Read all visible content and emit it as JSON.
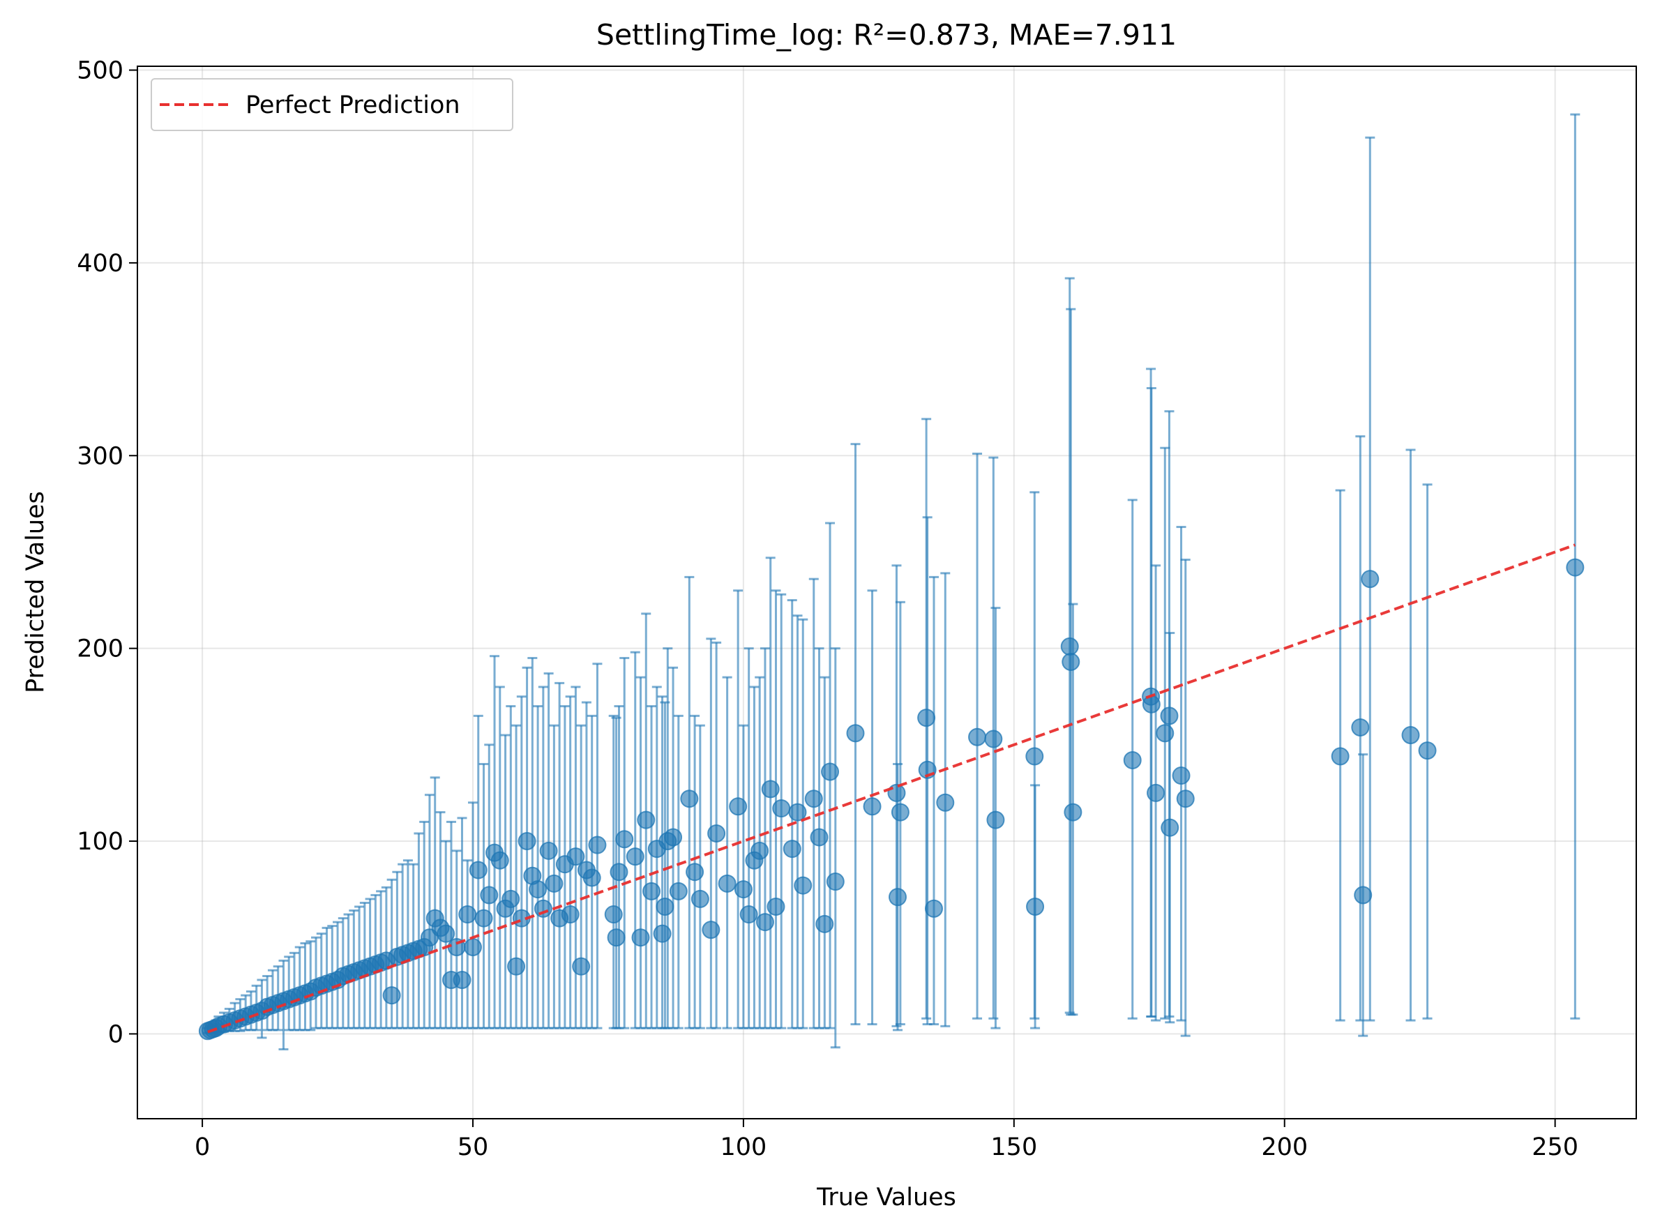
{
  "chart_data": {
    "type": "scatter",
    "title": "SettlingTime_log: R²=0.873, MAE=7.911",
    "xlabel": "True Values",
    "ylabel": "Predicted Values",
    "xlim": [
      -12,
      265
    ],
    "ylim": [
      -44,
      502
    ],
    "xticks": [
      0,
      50,
      100,
      150,
      200,
      250
    ],
    "yticks": [
      0,
      100,
      200,
      300,
      400,
      500
    ],
    "grid": true,
    "legend": {
      "placement": "top-left",
      "entries": [
        {
          "label": "Perfect Prediction",
          "style": "dashed",
          "color": "#e8302f"
        }
      ]
    },
    "reference_line": {
      "name": "Perfect Prediction",
      "x": [
        1,
        253.7
      ],
      "y": [
        1,
        253.7
      ],
      "color": "#e8302f"
    },
    "point_color": "#1f77b4",
    "series": [
      {
        "kind": "error_points",
        "points": [
          {
            "x": 1,
            "y": 1.5,
            "lo": 0.5,
            "hi": 3
          },
          {
            "x": 1.5,
            "y": 2,
            "lo": 0.5,
            "hi": 4
          },
          {
            "x": 2,
            "y": 2.5,
            "lo": 0.8,
            "hi": 5
          },
          {
            "x": 2.5,
            "y": 3,
            "lo": 1,
            "hi": 7
          },
          {
            "x": 3,
            "y": 4,
            "lo": 1,
            "hi": 9
          },
          {
            "x": 4,
            "y": 5,
            "lo": 1.2,
            "hi": 11
          },
          {
            "x": 5,
            "y": 6,
            "lo": 1.5,
            "hi": 13
          },
          {
            "x": 6,
            "y": 7,
            "lo": 1.5,
            "hi": 16
          },
          {
            "x": 7,
            "y": 8,
            "lo": 1.5,
            "hi": 18
          },
          {
            "x": 8,
            "y": 9,
            "lo": 2,
            "hi": 20
          },
          {
            "x": 9,
            "y": 10,
            "lo": 2,
            "hi": 22
          },
          {
            "x": 10,
            "y": 11,
            "lo": 2,
            "hi": 25
          },
          {
            "x": 11,
            "y": 12,
            "lo": -2,
            "hi": 28
          },
          {
            "x": 12,
            "y": 14,
            "lo": 2,
            "hi": 30
          },
          {
            "x": 13,
            "y": 15,
            "lo": 2,
            "hi": 33
          },
          {
            "x": 14,
            "y": 16,
            "lo": 2,
            "hi": 35
          },
          {
            "x": 15,
            "y": 17,
            "lo": -8,
            "hi": 38
          },
          {
            "x": 16,
            "y": 18,
            "lo": 2,
            "hi": 40
          },
          {
            "x": 17,
            "y": 19,
            "lo": 2,
            "hi": 42
          },
          {
            "x": 18,
            "y": 20,
            "lo": 2,
            "hi": 45
          },
          {
            "x": 19,
            "y": 21,
            "lo": 2,
            "hi": 47
          },
          {
            "x": 20,
            "y": 22,
            "lo": 2,
            "hi": 48
          },
          {
            "x": 21,
            "y": 24,
            "lo": 3,
            "hi": 50
          },
          {
            "x": 22,
            "y": 25,
            "lo": 3,
            "hi": 52
          },
          {
            "x": 23,
            "y": 26,
            "lo": 3,
            "hi": 55
          },
          {
            "x": 24,
            "y": 27,
            "lo": 3,
            "hi": 56
          },
          {
            "x": 25,
            "y": 28,
            "lo": 3,
            "hi": 58
          },
          {
            "x": 26,
            "y": 30,
            "lo": 3,
            "hi": 60
          },
          {
            "x": 27,
            "y": 31,
            "lo": 3,
            "hi": 62
          },
          {
            "x": 28,
            "y": 32,
            "lo": 3,
            "hi": 64
          },
          {
            "x": 29,
            "y": 33,
            "lo": 3,
            "hi": 66
          },
          {
            "x": 30,
            "y": 34,
            "lo": 3,
            "hi": 68
          },
          {
            "x": 31,
            "y": 35,
            "lo": 3,
            "hi": 70
          },
          {
            "x": 32,
            "y": 36,
            "lo": 3,
            "hi": 72
          },
          {
            "x": 33,
            "y": 37,
            "lo": 3,
            "hi": 74
          },
          {
            "x": 34,
            "y": 38,
            "lo": 3,
            "hi": 76
          },
          {
            "x": 35,
            "y": 20,
            "lo": 3,
            "hi": 80
          },
          {
            "x": 36,
            "y": 40,
            "lo": 3,
            "hi": 84
          },
          {
            "x": 37,
            "y": 41,
            "lo": 3,
            "hi": 88
          },
          {
            "x": 38,
            "y": 42,
            "lo": 3,
            "hi": 90
          },
          {
            "x": 39,
            "y": 43,
            "lo": 3,
            "hi": 88
          },
          {
            "x": 40,
            "y": 44,
            "lo": 3,
            "hi": 104
          },
          {
            "x": 41,
            "y": 45,
            "lo": 3,
            "hi": 110
          },
          {
            "x": 42,
            "y": 50,
            "lo": 3,
            "hi": 124
          },
          {
            "x": 43,
            "y": 60,
            "lo": 3,
            "hi": 133
          },
          {
            "x": 44,
            "y": 55,
            "lo": 3,
            "hi": 115
          },
          {
            "x": 45,
            "y": 52,
            "lo": 3,
            "hi": 100
          },
          {
            "x": 46,
            "y": 28,
            "lo": 3,
            "hi": 110
          },
          {
            "x": 47,
            "y": 45,
            "lo": 3,
            "hi": 95
          },
          {
            "x": 48,
            "y": 28,
            "lo": 3,
            "hi": 112
          },
          {
            "x": 49,
            "y": 62,
            "lo": 3,
            "hi": 90
          },
          {
            "x": 50,
            "y": 45,
            "lo": 3,
            "hi": 120
          },
          {
            "x": 51,
            "y": 85,
            "lo": 3,
            "hi": 165
          },
          {
            "x": 52,
            "y": 60,
            "lo": 3,
            "hi": 140
          },
          {
            "x": 53,
            "y": 72,
            "lo": 3,
            "hi": 150
          },
          {
            "x": 54,
            "y": 94,
            "lo": 3,
            "hi": 196
          },
          {
            "x": 55,
            "y": 90,
            "lo": 3,
            "hi": 180
          },
          {
            "x": 56,
            "y": 65,
            "lo": 3,
            "hi": 155
          },
          {
            "x": 57,
            "y": 70,
            "lo": 3,
            "hi": 170
          },
          {
            "x": 58,
            "y": 35,
            "lo": 3,
            "hi": 160
          },
          {
            "x": 59,
            "y": 60,
            "lo": 3,
            "hi": 175
          },
          {
            "x": 60,
            "y": 100,
            "lo": 3,
            "hi": 190
          },
          {
            "x": 61,
            "y": 82,
            "lo": 3,
            "hi": 195
          },
          {
            "x": 62,
            "y": 75,
            "lo": 3,
            "hi": 170
          },
          {
            "x": 63,
            "y": 65,
            "lo": 3,
            "hi": 180
          },
          {
            "x": 64,
            "y": 95,
            "lo": 3,
            "hi": 187
          },
          {
            "x": 65,
            "y": 78,
            "lo": 3,
            "hi": 160
          },
          {
            "x": 66,
            "y": 60,
            "lo": 3,
            "hi": 182
          },
          {
            "x": 67,
            "y": 88,
            "lo": 3,
            "hi": 170
          },
          {
            "x": 68,
            "y": 62,
            "lo": 3,
            "hi": 175
          },
          {
            "x": 69,
            "y": 92,
            "lo": 3,
            "hi": 180
          },
          {
            "x": 70,
            "y": 35,
            "lo": 3,
            "hi": 160
          },
          {
            "x": 71,
            "y": 85,
            "lo": 3,
            "hi": 172
          },
          {
            "x": 72,
            "y": 81,
            "lo": 3,
            "hi": 165
          },
          {
            "x": 73,
            "y": 98,
            "lo": 3,
            "hi": 192
          },
          {
            "x": 76,
            "y": 62,
            "lo": 3,
            "hi": 165
          },
          {
            "x": 76.5,
            "y": 50,
            "lo": 3,
            "hi": 164
          },
          {
            "x": 77,
            "y": 84,
            "lo": 3,
            "hi": 170
          },
          {
            "x": 78,
            "y": 101,
            "lo": 3,
            "hi": 195
          },
          {
            "x": 80,
            "y": 92,
            "lo": 3,
            "hi": 198
          },
          {
            "x": 81,
            "y": 50,
            "lo": 3,
            "hi": 185
          },
          {
            "x": 82,
            "y": 111,
            "lo": 3,
            "hi": 218
          },
          {
            "x": 83,
            "y": 74,
            "lo": 3,
            "hi": 170
          },
          {
            "x": 84,
            "y": 96,
            "lo": 3,
            "hi": 180
          },
          {
            "x": 85,
            "y": 52,
            "lo": 3,
            "hi": 175
          },
          {
            "x": 85.5,
            "y": 66,
            "lo": 3,
            "hi": 172
          },
          {
            "x": 86,
            "y": 100,
            "lo": 3,
            "hi": 200
          },
          {
            "x": 87,
            "y": 102,
            "lo": 3,
            "hi": 190
          },
          {
            "x": 88,
            "y": 74,
            "lo": 3,
            "hi": 165
          },
          {
            "x": 90,
            "y": 122,
            "lo": 3,
            "hi": 237
          },
          {
            "x": 91,
            "y": 84,
            "lo": 3,
            "hi": 165
          },
          {
            "x": 92,
            "y": 70,
            "lo": 3,
            "hi": 160
          },
          {
            "x": 94,
            "y": 54,
            "lo": 3,
            "hi": 205
          },
          {
            "x": 95,
            "y": 104,
            "lo": 3,
            "hi": 203
          },
          {
            "x": 97,
            "y": 78,
            "lo": 3,
            "hi": 185
          },
          {
            "x": 99,
            "y": 118,
            "lo": 3,
            "hi": 230
          },
          {
            "x": 100,
            "y": 75,
            "lo": 3,
            "hi": 160
          },
          {
            "x": 101,
            "y": 62,
            "lo": 3,
            "hi": 200
          },
          {
            "x": 102,
            "y": 90,
            "lo": 3,
            "hi": 180
          },
          {
            "x": 103,
            "y": 95,
            "lo": 3,
            "hi": 185
          },
          {
            "x": 104,
            "y": 58,
            "lo": 3,
            "hi": 200
          },
          {
            "x": 105,
            "y": 127,
            "lo": 3,
            "hi": 247
          },
          {
            "x": 106,
            "y": 66,
            "lo": 3,
            "hi": 230
          },
          {
            "x": 107,
            "y": 117,
            "lo": 3,
            "hi": 228
          },
          {
            "x": 109,
            "y": 96,
            "lo": 3,
            "hi": 225
          },
          {
            "x": 110,
            "y": 115,
            "lo": 3,
            "hi": 217
          },
          {
            "x": 111,
            "y": 77,
            "lo": 3,
            "hi": 215
          },
          {
            "x": 113,
            "y": 122,
            "lo": 3,
            "hi": 236
          },
          {
            "x": 114,
            "y": 102,
            "lo": 3,
            "hi": 200
          },
          {
            "x": 115,
            "y": 57,
            "lo": 3,
            "hi": 185
          },
          {
            "x": 116,
            "y": 136,
            "lo": 3,
            "hi": 265
          },
          {
            "x": 117,
            "y": 79,
            "lo": -7,
            "hi": 200
          },
          {
            "x": 120.7,
            "y": 156,
            "lo": 5,
            "hi": 306
          },
          {
            "x": 123.8,
            "y": 118,
            "lo": 5,
            "hi": 230
          },
          {
            "x": 128.3,
            "y": 125,
            "lo": 4,
            "hi": 243
          },
          {
            "x": 128.5,
            "y": 71,
            "lo": 2,
            "hi": 140
          },
          {
            "x": 129,
            "y": 115,
            "lo": 5,
            "hi": 224
          },
          {
            "x": 133.8,
            "y": 164,
            "lo": 8,
            "hi": 319
          },
          {
            "x": 134,
            "y": 137,
            "lo": 5,
            "hi": 268
          },
          {
            "x": 135.2,
            "y": 65,
            "lo": 5,
            "hi": 237
          },
          {
            "x": 137.3,
            "y": 120,
            "lo": 4,
            "hi": 239
          },
          {
            "x": 143.2,
            "y": 154,
            "lo": 8,
            "hi": 301
          },
          {
            "x": 146.2,
            "y": 153,
            "lo": 8,
            "hi": 299
          },
          {
            "x": 146.6,
            "y": 111,
            "lo": 3,
            "hi": 221
          },
          {
            "x": 153.8,
            "y": 144,
            "lo": 8,
            "hi": 281
          },
          {
            "x": 153.9,
            "y": 66,
            "lo": 3,
            "hi": 129
          },
          {
            "x": 160.3,
            "y": 201,
            "lo": 11,
            "hi": 392
          },
          {
            "x": 160.5,
            "y": 193,
            "lo": 10,
            "hi": 376
          },
          {
            "x": 160.9,
            "y": 115,
            "lo": 10,
            "hi": 223
          },
          {
            "x": 171.9,
            "y": 142,
            "lo": 8,
            "hi": 277
          },
          {
            "x": 175.3,
            "y": 175,
            "lo": 9,
            "hi": 345
          },
          {
            "x": 175.4,
            "y": 171,
            "lo": 9,
            "hi": 335
          },
          {
            "x": 176.2,
            "y": 125,
            "lo": 7,
            "hi": 243
          },
          {
            "x": 177.9,
            "y": 156,
            "lo": 8,
            "hi": 304
          },
          {
            "x": 178.7,
            "y": 165,
            "lo": 9,
            "hi": 323
          },
          {
            "x": 178.8,
            "y": 107,
            "lo": 6,
            "hi": 208
          },
          {
            "x": 180.9,
            "y": 134,
            "lo": 7,
            "hi": 263
          },
          {
            "x": 181.7,
            "y": 122,
            "lo": -1,
            "hi": 246
          },
          {
            "x": 210.3,
            "y": 144,
            "lo": 7,
            "hi": 282
          },
          {
            "x": 214,
            "y": 159,
            "lo": 7,
            "hi": 310
          },
          {
            "x": 214.5,
            "y": 72,
            "lo": -1,
            "hi": 145
          },
          {
            "x": 215.8,
            "y": 236,
            "lo": 7,
            "hi": 465
          },
          {
            "x": 223.3,
            "y": 155,
            "lo": 7,
            "hi": 303
          },
          {
            "x": 226.4,
            "y": 147,
            "lo": 8,
            "hi": 285
          },
          {
            "x": 253.7,
            "y": 242,
            "lo": 8,
            "hi": 477
          }
        ]
      }
    ]
  }
}
